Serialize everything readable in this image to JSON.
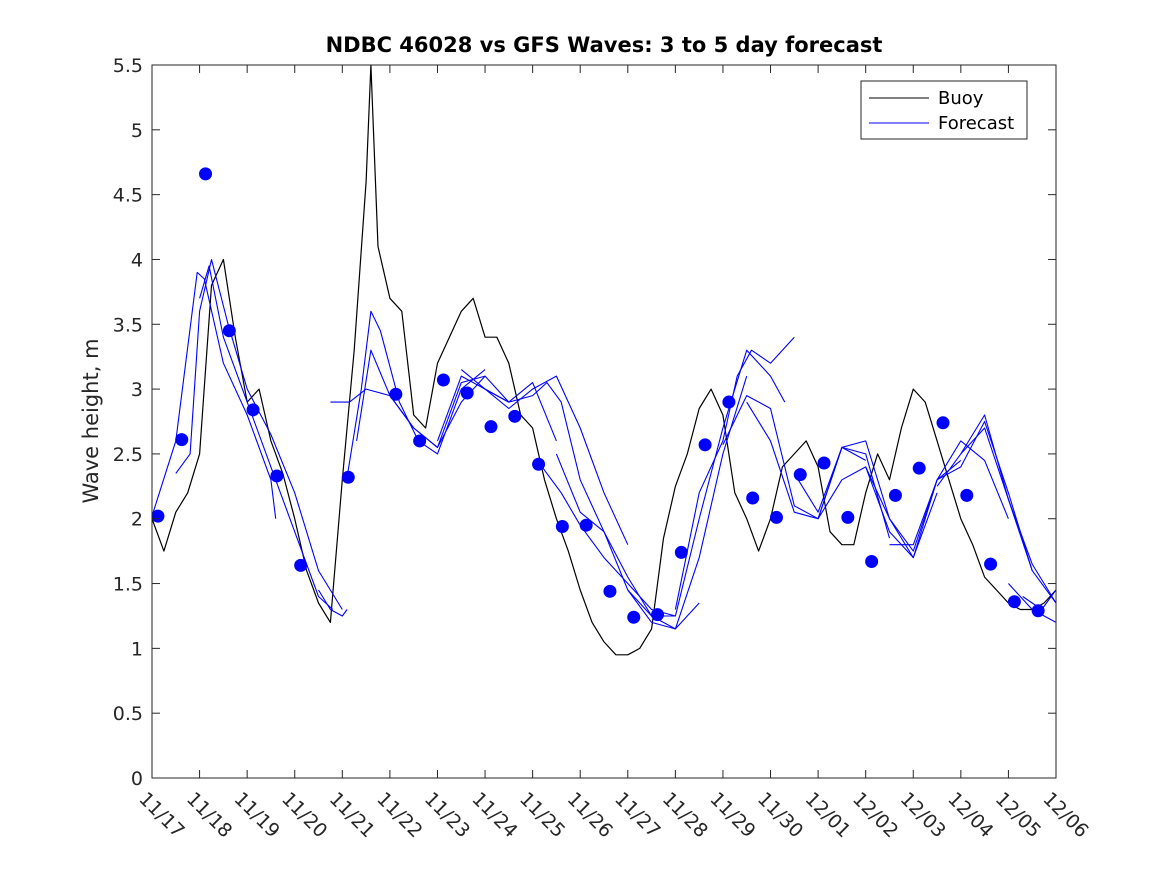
{
  "chart_data": {
    "type": "line",
    "title": "NDBC 46028 vs GFS Waves: 3 to 5 day forecast",
    "xlabel": "",
    "ylabel": "Wave height, m",
    "xlim": [
      0,
      19
    ],
    "ylim": [
      0,
      5.5
    ],
    "yticks": [
      0,
      0.5,
      1,
      1.5,
      2,
      2.5,
      3,
      3.5,
      4,
      4.5,
      5,
      5.5
    ],
    "yticklabels": [
      "0",
      "0.5",
      "1",
      "1.5",
      "2",
      "2.5",
      "3",
      "3.5",
      "4",
      "4.5",
      "5",
      "5.5"
    ],
    "xtick_labels": [
      "11/17",
      "11/18",
      "11/19",
      "11/20",
      "11/21",
      "11/22",
      "11/23",
      "11/24",
      "11/25",
      "11/26",
      "11/27",
      "11/28",
      "11/29",
      "11/30",
      "12/01",
      "12/02",
      "12/03",
      "12/04",
      "12/05",
      "12/06"
    ],
    "x_unit": "days since 11/17 00:00",
    "grid": false,
    "legend": {
      "placement": "top-right",
      "entries": [
        {
          "name": "Buoy",
          "color": "#000000"
        },
        {
          "name": "Forecast",
          "color": "#0000ff"
        }
      ]
    },
    "series": [
      {
        "name": "Buoy",
        "style": "line",
        "color": "#000000",
        "x": [
          0,
          0.25,
          0.5,
          0.75,
          1,
          1.25,
          1.5,
          1.75,
          2,
          2.25,
          2.5,
          2.75,
          3,
          3.25,
          3.5,
          3.75,
          4,
          4.25,
          4.5,
          4.6,
          4.75,
          5,
          5.25,
          5.5,
          5.75,
          6,
          6.25,
          6.5,
          6.75,
          7,
          7.25,
          7.5,
          7.75,
          8,
          8.25,
          8.5,
          8.75,
          9,
          9.25,
          9.5,
          9.75,
          10,
          10.25,
          10.5,
          10.75,
          11,
          11.25,
          11.5,
          11.75,
          12,
          12.25,
          12.5,
          12.75,
          13,
          13.25,
          13.5,
          13.75,
          14,
          14.25,
          14.5,
          14.75,
          15,
          15.25,
          15.5,
          15.75,
          16,
          16.25,
          16.5,
          16.75,
          17,
          17.25,
          17.5,
          17.75,
          18,
          18.25,
          18.5,
          18.75,
          19
        ],
        "values": [
          2.0,
          1.75,
          2.05,
          2.2,
          2.5,
          3.8,
          4.0,
          3.4,
          2.9,
          3.0,
          2.6,
          2.35,
          2.0,
          1.6,
          1.35,
          1.2,
          2.3,
          3.3,
          4.6,
          5.5,
          4.1,
          3.7,
          3.6,
          2.8,
          2.7,
          3.2,
          3.4,
          3.6,
          3.7,
          3.4,
          3.4,
          3.2,
          2.8,
          2.7,
          2.3,
          2.0,
          1.75,
          1.45,
          1.2,
          1.05,
          0.95,
          0.95,
          1.0,
          1.15,
          1.85,
          2.25,
          2.5,
          2.85,
          3.0,
          2.8,
          2.2,
          2.0,
          1.75,
          2.0,
          2.4,
          2.5,
          2.6,
          2.4,
          1.9,
          1.8,
          1.8,
          2.2,
          2.5,
          2.3,
          2.7,
          3.0,
          2.9,
          2.6,
          2.3,
          2.0,
          1.8,
          1.55,
          1.45,
          1.35,
          1.3,
          1.3,
          1.35,
          1.45
        ]
      },
      {
        "name": "Forecast",
        "style": "lines",
        "color": "#0000ff",
        "runs": [
          {
            "x": [
              0,
              0.5,
              0.95,
              1.1,
              1.5,
              2.0,
              2.5,
              2.6
            ],
            "values": [
              2.02,
              2.6,
              3.9,
              3.85,
              3.2,
              2.8,
              2.3,
              2.0
            ]
          },
          {
            "x": [
              0.5,
              0.8,
              1.0,
              1.25,
              1.6,
              2.0,
              2.5,
              3.0,
              3.5,
              4.0
            ],
            "values": [
              2.35,
              2.5,
              3.6,
              4.0,
              3.5,
              3.0,
              2.65,
              2.2,
              1.6,
              1.3
            ]
          },
          {
            "x": [
              1.0,
              1.2,
              1.5,
              2.0,
              2.5,
              3.0,
              3.5,
              3.8
            ],
            "values": [
              3.7,
              3.95,
              3.4,
              2.9,
              2.4,
              1.9,
              1.4,
              1.3
            ]
          },
          {
            "x": [
              3.5,
              3.75,
              4.0,
              4.1
            ],
            "values": [
              1.45,
              1.3,
              1.25,
              1.3
            ]
          },
          {
            "x": [
              3.75,
              4.0,
              4.15,
              4.5,
              5.0,
              5.5,
              6.0,
              6.5,
              7.0
            ],
            "values": [
              2.9,
              2.9,
              2.9,
              3.0,
              2.95,
              2.7,
              2.55,
              2.9,
              3.1
            ]
          },
          {
            "x": [
              4.1,
              4.4,
              4.6,
              4.8,
              5.2,
              5.6,
              6.0,
              6.5,
              7.0
            ],
            "values": [
              2.32,
              3.0,
              3.6,
              3.45,
              2.9,
              2.6,
              2.5,
              3.0,
              3.15
            ]
          },
          {
            "x": [
              4.3,
              4.6,
              5.0,
              5.5,
              6.0,
              6.5,
              7.0,
              7.5
            ],
            "values": [
              2.6,
              3.3,
              2.95,
              2.7,
              2.55,
              3.05,
              3.1,
              2.9
            ]
          },
          {
            "x": [
              6.0,
              6.5,
              7.0,
              7.5,
              8.0,
              8.5
            ],
            "values": [
              2.6,
              3.1,
              3.0,
              2.9,
              3.05,
              2.6
            ]
          },
          {
            "x": [
              6.5,
              7.0,
              7.5,
              8.0,
              8.5,
              9.0,
              9.5,
              10.0
            ],
            "values": [
              3.15,
              3.0,
              2.85,
              3.0,
              3.1,
              2.7,
              2.2,
              1.8
            ]
          },
          {
            "x": [
              7.0,
              7.5,
              8.0,
              8.3,
              8.6,
              9.0,
              9.5,
              10.0,
              10.5
            ],
            "values": [
              3.0,
              2.9,
              2.95,
              3.05,
              2.9,
              2.3,
              1.9,
              1.45,
              1.25
            ]
          },
          {
            "x": [
              8.2,
              8.6,
              9.0,
              9.5,
              10.0,
              10.5,
              11.0
            ],
            "values": [
              2.4,
              2.2,
              1.95,
              1.7,
              1.5,
              1.3,
              1.25
            ]
          },
          {
            "x": [
              8.5,
              9.0,
              9.5,
              10.0,
              10.5,
              11.0,
              11.5
            ],
            "values": [
              2.5,
              2.05,
              1.9,
              1.55,
              1.25,
              1.15,
              1.35
            ]
          },
          {
            "x": [
              10.0,
              10.5,
              11.0,
              11.5,
              12.0,
              12.5
            ],
            "values": [
              1.45,
              1.2,
              1.15,
              1.7,
              2.5,
              3.1
            ]
          },
          {
            "x": [
              10.5,
              11.0,
              11.5,
              12.0,
              12.5,
              13.0,
              13.3
            ],
            "values": [
              1.25,
              1.25,
              2.0,
              2.7,
              3.3,
              3.1,
              2.9
            ]
          },
          {
            "x": [
              11.0,
              11.5,
              12.0,
              12.3,
              12.6,
              13.0,
              13.5
            ],
            "values": [
              1.3,
              2.2,
              2.6,
              3.1,
              3.3,
              3.2,
              3.4
            ]
          },
          {
            "x": [
              12.0,
              12.5,
              13.0,
              13.5,
              14.0,
              14.5,
              15.0
            ],
            "values": [
              2.57,
              2.95,
              2.85,
              2.1,
              2.0,
              2.55,
              2.45
            ]
          },
          {
            "x": [
              12.5,
              13.0,
              13.5,
              14.0,
              14.5,
              15.0,
              15.5
            ],
            "values": [
              2.9,
              2.6,
              2.05,
              2.0,
              2.55,
              2.5,
              1.85
            ]
          },
          {
            "x": [
              13.5,
              14.0,
              14.5,
              15.0,
              15.5,
              16.0,
              16.5
            ],
            "values": [
              2.35,
              2.05,
              2.55,
              2.6,
              2.0,
              1.7,
              2.2
            ]
          },
          {
            "x": [
              14.0,
              14.5,
              15.0,
              15.5,
              16.0,
              16.5,
              17.0
            ],
            "values": [
              2.0,
              2.3,
              2.4,
              2.0,
              1.75,
              2.3,
              2.45
            ]
          },
          {
            "x": [
              15.0,
              15.5,
              16.0,
              16.5,
              17.0,
              17.5,
              18.0
            ],
            "values": [
              2.4,
              1.9,
              1.7,
              2.3,
              2.6,
              2.45,
              2.0
            ]
          },
          {
            "x": [
              15.5,
              16.0,
              16.5,
              17.0,
              17.5,
              18.0,
              18.5
            ],
            "values": [
              1.8,
              1.8,
              2.3,
              2.4,
              2.75,
              2.2,
              1.6
            ]
          },
          {
            "x": [
              16.5,
              17.0,
              17.5,
              18.0,
              18.5,
              19.0
            ],
            "values": [
              2.25,
              2.5,
              2.7,
              2.15,
              1.6,
              1.35
            ]
          },
          {
            "x": [
              17.0,
              17.5,
              18.0,
              18.5,
              19.0
            ],
            "values": [
              2.5,
              2.8,
              2.15,
              1.65,
              1.35
            ]
          },
          {
            "x": [
              18.0,
              18.5,
              19.0
            ],
            "values": [
              1.5,
              1.3,
              1.2
            ]
          },
          {
            "x": [
              18.3,
              18.7,
              19.0
            ],
            "values": [
              1.4,
              1.3,
              1.45
            ]
          }
        ]
      },
      {
        "name": "Forecast markers",
        "style": "markers",
        "color": "#0000ff",
        "x": [
          0.125,
          0.625,
          1.125,
          1.625,
          2.125,
          2.625,
          3.125,
          4.125,
          5.125,
          5.625,
          6.125,
          6.625,
          7.125,
          7.625,
          8.125,
          8.625,
          9.125,
          9.625,
          10.125,
          10.625,
          11.125,
          11.625,
          12.125,
          12.625,
          13.125,
          13.625,
          14.125,
          14.625,
          15.125,
          15.625,
          16.125,
          16.625,
          17.125,
          17.625,
          18.125,
          18.625
        ],
        "values": [
          2.02,
          2.61,
          4.66,
          3.45,
          2.84,
          2.33,
          1.64,
          2.32,
          2.96,
          2.6,
          3.07,
          2.97,
          2.71,
          2.79,
          2.42,
          1.94,
          1.95,
          1.44,
          1.24,
          1.26,
          1.74,
          2.57,
          2.9,
          2.16,
          2.01,
          2.34,
          2.43,
          2.01,
          1.67,
          2.18,
          2.39,
          2.74,
          2.18,
          1.65,
          1.36,
          1.29
        ]
      }
    ]
  }
}
